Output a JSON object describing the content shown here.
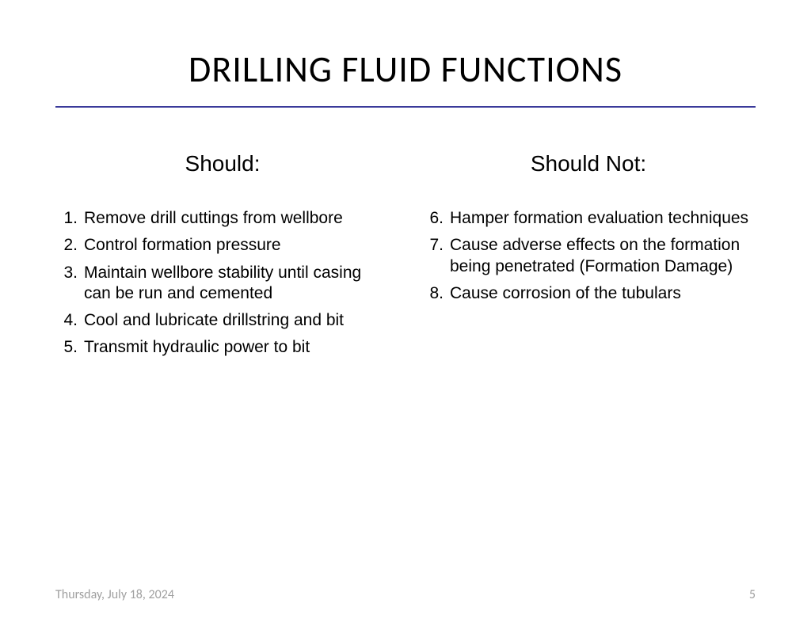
{
  "title": "DRILLING FLUID FUNCTIONS",
  "columns": {
    "left": {
      "header": "Should:",
      "start": 1,
      "items": [
        "Remove drill cuttings from wellbore",
        "Control formation pressure",
        "Maintain wellbore stability until casing can be run and cemented",
        "Cool and lubricate drillstring and bit",
        "Transmit hydraulic power to bit"
      ]
    },
    "right": {
      "header": "Should Not:",
      "start": 6,
      "items": [
        "Hamper formation evaluation techniques",
        "Cause adverse effects on the formation being penetrated (Formation Damage)",
        "Cause corrosion of the tubulars"
      ]
    }
  },
  "footer": {
    "date": "Thursday, July 18, 2024",
    "page": "5"
  },
  "styling": {
    "title_color": "#000000",
    "title_fontsize": 46,
    "underline_color": "#3a3a9a",
    "header_fontsize": 28,
    "body_fontsize": 21,
    "footer_color": "#a0a0a0",
    "footer_fontsize": 16,
    "background_color": "#ffffff"
  }
}
